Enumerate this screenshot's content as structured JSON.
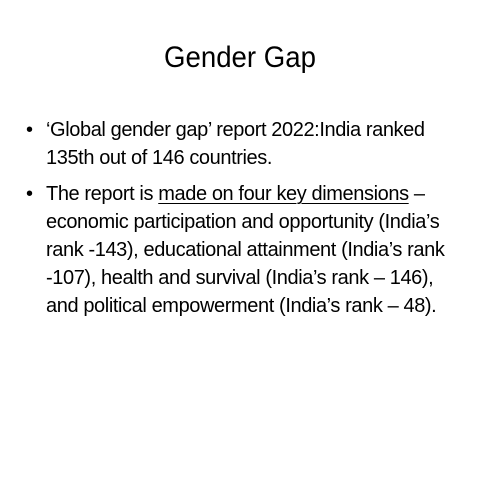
{
  "slide": {
    "title": "Gender Gap",
    "bullets": [
      {
        "text": "‘Global gender gap’ report 2022:India ranked 135th out of 146 countries."
      },
      {
        "prefix": "The report is ",
        "underlined": "made on four key dimensions",
        "suffix": " – economic participation and opportunity (India’s rank -143), educational attainment (India’s rank -107), health and survival (India’s rank – 146), and political empowerment (India’s rank – 48)."
      }
    ],
    "bullet_glyph": "•"
  }
}
